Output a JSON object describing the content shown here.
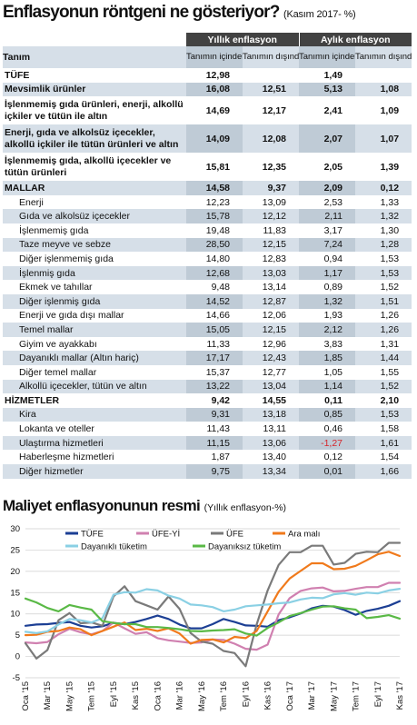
{
  "header": {
    "title": "Enflasyonun röntgeni ne gösteriyor?",
    "subtitle": "(Kasım 2017- %)"
  },
  "table": {
    "col_label": "Tanım",
    "group_annual": "Yıllık enflasyon",
    "group_monthly": "Aylık enflasyon",
    "sub_included": "Tanımın içindekiler",
    "sub_excluded": "Tanımın dışındakiler",
    "rows": [
      {
        "label": "TÜFE",
        "style": "bold",
        "alt": false,
        "v": [
          "12,98",
          "",
          "1,49",
          ""
        ]
      },
      {
        "label": "Mevsimlik ürünler",
        "style": "bold",
        "alt": true,
        "v": [
          "16,08",
          "12,51",
          "5,13",
          "1,08"
        ]
      },
      {
        "label": "İşlenmemiş gıda ürünleri, enerji, alkollü içkiler ve tütün ile altın",
        "style": "bold tall",
        "alt": false,
        "v": [
          "14,69",
          "12,17",
          "2,41",
          "1,09"
        ]
      },
      {
        "label": "Enerji, gıda ve alkolsüz içecekler, alkollü içkiler ile tütün ürünleri ve altın",
        "style": "bold tall",
        "alt": true,
        "v": [
          "14,09",
          "12,08",
          "2,07",
          "1,07"
        ]
      },
      {
        "label": "İşlenmemiş gıda, alkollü içecekler ve tütün ürünleri",
        "style": "bold tall",
        "alt": false,
        "v": [
          "15,81",
          "12,35",
          "2,05",
          "1,39"
        ]
      },
      {
        "label": "MALLAR",
        "style": "bold",
        "alt": true,
        "v": [
          "14,58",
          "9,37",
          "2,09",
          "0,12"
        ]
      },
      {
        "label": "Enerji",
        "style": "ind",
        "alt": false,
        "v": [
          "12,23",
          "13,09",
          "2,53",
          "1,33"
        ]
      },
      {
        "label": "Gıda ve alkolsüz içecekler",
        "style": "ind",
        "alt": true,
        "v": [
          "15,78",
          "12,12",
          "2,11",
          "1,32"
        ]
      },
      {
        "label": "İşlenmemiş gıda",
        "style": "ind",
        "alt": false,
        "v": [
          "19,48",
          "11,83",
          "3,17",
          "1,30"
        ]
      },
      {
        "label": "Taze meyve ve sebze",
        "style": "ind",
        "alt": true,
        "v": [
          "28,50",
          "12,15",
          "7,24",
          "1,28"
        ]
      },
      {
        "label": "Diğer işlenmemiş gıda",
        "style": "ind",
        "alt": false,
        "v": [
          "14,80",
          "12,83",
          "0,94",
          "1,53"
        ]
      },
      {
        "label": "İşlenmiş gıda",
        "style": "ind",
        "alt": true,
        "v": [
          "12,68",
          "13,03",
          "1,17",
          "1,53"
        ]
      },
      {
        "label": "Ekmek ve tahıllar",
        "style": "ind",
        "alt": false,
        "v": [
          "9,48",
          "13,14",
          "0,89",
          "1,52"
        ]
      },
      {
        "label": "Diğer işlenmiş gıda",
        "style": "ind",
        "alt": true,
        "v": [
          "14,52",
          "12,87",
          "1,32",
          "1,51"
        ]
      },
      {
        "label": "Enerji ve gıda dışı mallar",
        "style": "ind",
        "alt": false,
        "v": [
          "14,66",
          "12,06",
          "1,93",
          "1,26"
        ]
      },
      {
        "label": "Temel mallar",
        "style": "ind",
        "alt": true,
        "v": [
          "15,05",
          "12,15",
          "2,12",
          "1,26"
        ]
      },
      {
        "label": "Giyim ve ayakkabı",
        "style": "ind",
        "alt": false,
        "v": [
          "11,33",
          "12,96",
          "3,83",
          "1,31"
        ]
      },
      {
        "label": "Dayanıklı mallar (Altın hariç)",
        "style": "ind",
        "alt": true,
        "v": [
          "17,17",
          "12,43",
          "1,85",
          "1,44"
        ]
      },
      {
        "label": "Diğer temel mallar",
        "style": "ind",
        "alt": false,
        "v": [
          "15,37",
          "12,77",
          "1,05",
          "1,55"
        ]
      },
      {
        "label": "Alkollü içecekler, tütün ve altın",
        "style": "ind",
        "alt": true,
        "v": [
          "13,22",
          "13,04",
          "1,14",
          "1,52"
        ]
      },
      {
        "label": "HİZMETLER",
        "style": "bold",
        "alt": false,
        "v": [
          "9,42",
          "14,55",
          "0,11",
          "2,10"
        ]
      },
      {
        "label": "Kira",
        "style": "ind",
        "alt": true,
        "v": [
          "9,31",
          "13,18",
          "0,85",
          "1,53"
        ]
      },
      {
        "label": "Lokanta ve oteller",
        "style": "ind",
        "alt": false,
        "v": [
          "11,43",
          "13,11",
          "0,46",
          "1,58"
        ]
      },
      {
        "label": "Ulaştırma hizmetleri",
        "style": "ind",
        "alt": true,
        "v": [
          "11,15",
          "13,06",
          "-1,27",
          "1,61"
        ]
      },
      {
        "label": "Haberleşme hizmetleri",
        "style": "ind",
        "alt": false,
        "v": [
          "1,87",
          "13,40",
          "0,12",
          "1,54"
        ]
      },
      {
        "label": "Diğer hizmetler",
        "style": "ind",
        "alt": true,
        "v": [
          "9,75",
          "13,34",
          "0,01",
          "1,66"
        ]
      }
    ]
  },
  "chart_title": "Maliyet enflasyonunun resmi",
  "chart_subtitle": "(Yıllık enflasyon-%)",
  "chart_data": {
    "type": "line",
    "ylim": [
      -5,
      30
    ],
    "yticks": [
      -5,
      0,
      5,
      10,
      15,
      20,
      25,
      30
    ],
    "grid": true,
    "legend_position": "top",
    "x": [
      "Oca '15",
      "Şub '15",
      "Mar '15",
      "Nis '15",
      "May '15",
      "Haz '15",
      "Tem '15",
      "Ağu '15",
      "Eyl '15",
      "Eki '15",
      "Kas '15",
      "Ara '15",
      "Oca '16",
      "Şub '16",
      "Mar '16",
      "Nis '16",
      "May '16",
      "Haz '16",
      "Tem '16",
      "Ağu '16",
      "Eyl '16",
      "Eki '16",
      "Kas '16",
      "Ara '16",
      "Oca '17",
      "Şub '17",
      "Mar '17",
      "Nis '17",
      "May '17",
      "Haz '17",
      "Tem '17",
      "Ağu '17",
      "Eyl '17",
      "Eki '17",
      "Kas '17"
    ],
    "xtick_labels": [
      "Oca '15",
      "Mar '15",
      "May '15",
      "Tem '15",
      "Eyl '15",
      "Kas '15",
      "Oca '16",
      "Mar '16",
      "May '16",
      "Tem '16",
      "Eyl '16",
      "Kas '16",
      "Oca '17",
      "Mar '17",
      "May '17",
      "Tem '17",
      "Eyl '17",
      "Kas '17"
    ],
    "series": [
      {
        "name": "TÜFE",
        "color": "#1c3f94",
        "values": [
          7.2,
          7.5,
          7.6,
          7.9,
          8.1,
          7.2,
          6.8,
          7.1,
          7.9,
          7.6,
          8.1,
          8.8,
          9.6,
          8.8,
          7.5,
          6.6,
          6.6,
          7.6,
          8.8,
          8.1,
          7.3,
          7.2,
          7.0,
          8.5,
          9.2,
          10.1,
          11.3,
          11.9,
          11.7,
          10.9,
          9.8,
          10.7,
          11.2,
          11.9,
          13.0
        ]
      },
      {
        "name": "ÜFE-Yİ",
        "color": "#d080b0",
        "values": [
          3.3,
          3.1,
          3.4,
          5.2,
          6.5,
          5.7,
          5.2,
          6.0,
          8.0,
          6.6,
          5.3,
          5.7,
          4.3,
          3.8,
          3.5,
          3.2,
          3.3,
          4.0,
          3.9,
          3.0,
          1.8,
          1.6,
          2.8,
          9.9,
          13.7,
          15.4,
          16.0,
          16.2,
          15.3,
          15.4,
          15.9,
          16.3,
          16.3,
          17.3,
          17.3
        ]
      },
      {
        "name": "ÜFE",
        "color": "#7a7a7a",
        "values": [
          3.1,
          -0.5,
          1.5,
          8.5,
          10.2,
          7.8,
          8.0,
          7.2,
          14.1,
          16.5,
          13.0,
          12.0,
          11.0,
          14.1,
          11.2,
          5.5,
          3.5,
          3.0,
          1.3,
          0.8,
          -2.3,
          7.5,
          15.5,
          21.5,
          24.5,
          24.5,
          26.0,
          26.0,
          21.6,
          22.0,
          24.1,
          24.6,
          24.5,
          26.7,
          26.7
        ]
      },
      {
        "name": "Ara malı",
        "color": "#f07a1c",
        "values": [
          5.0,
          5.1,
          5.8,
          6.0,
          6.8,
          6.4,
          5.0,
          6.0,
          7.0,
          8.0,
          6.2,
          6.5,
          6.0,
          6.6,
          5.4,
          3.0,
          3.9,
          4.0,
          3.3,
          4.6,
          4.3,
          6.0,
          10.6,
          15.2,
          18.3,
          20.1,
          21.9,
          21.9,
          20.5,
          20.6,
          21.3,
          22.6,
          24.0,
          24.6,
          23.6
        ]
      },
      {
        "name": "Dayanıklı tüketim",
        "color": "#8ad0e4",
        "values": [
          5.8,
          5.5,
          5.9,
          7.5,
          8.8,
          8.5,
          8.0,
          9.0,
          14.5,
          15.1,
          15.0,
          15.8,
          15.5,
          14.3,
          13.6,
          12.2,
          12.0,
          11.6,
          10.6,
          11.0,
          11.8,
          12.0,
          12.2,
          12.5,
          12.7,
          13.4,
          13.8,
          13.7,
          14.6,
          14.9,
          14.5,
          15.0,
          14.8,
          15.5,
          15.9
        ]
      },
      {
        "name": "Dayanıksız tüketim",
        "color": "#5ab946",
        "values": [
          13.6,
          12.7,
          11.4,
          10.6,
          12.1,
          11.5,
          11.0,
          8.3,
          7.9,
          7.6,
          7.6,
          6.9,
          6.9,
          6.7,
          6.4,
          6.0,
          5.9,
          6.1,
          6.2,
          6.4,
          5.4,
          4.9,
          6.7,
          8.0,
          9.5,
          10.2,
          11.0,
          11.7,
          11.8,
          11.3,
          11.0,
          9.0,
          9.3,
          9.7,
          8.9
        ]
      }
    ]
  }
}
